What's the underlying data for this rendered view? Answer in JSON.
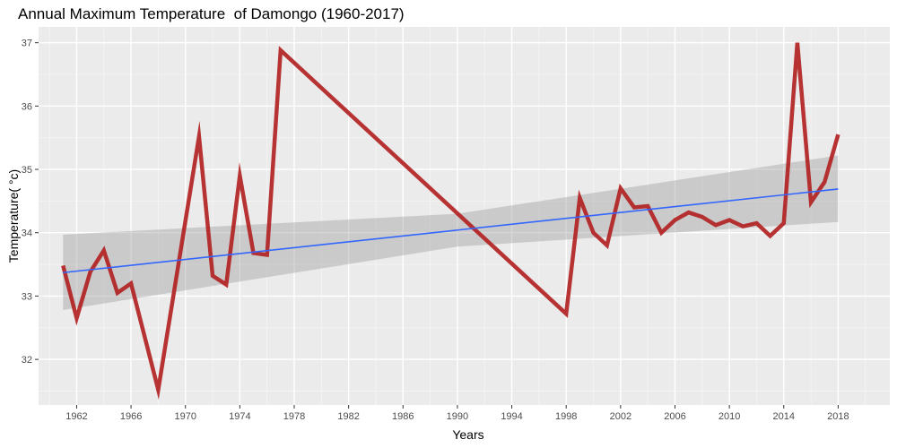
{
  "chart_data": {
    "type": "line",
    "title": "Annual Maximum Temperature  of Damongo (1960-2017)",
    "xlabel": "Years",
    "ylabel": "Temperature( °c)",
    "xlim": [
      1959.2,
      2021.8
    ],
    "ylim": [
      31.28,
      37.25
    ],
    "x_ticks": [
      1962,
      1966,
      1970,
      1974,
      1978,
      1982,
      1986,
      1990,
      1994,
      1998,
      2002,
      2006,
      2010,
      2014,
      2018
    ],
    "y_ticks": [
      32,
      33,
      34,
      35,
      36,
      37
    ],
    "grid": true,
    "series": [
      {
        "name": "Annual maximum temperature",
        "color": "#B22222",
        "x": [
          1961,
          1962,
          1963,
          1964,
          1965,
          1966,
          1968,
          1971,
          1972,
          1973,
          1974,
          1975,
          1976,
          1977,
          1998,
          1999,
          2000,
          2001,
          2002,
          2003,
          2004,
          2005,
          2006,
          2007,
          2008,
          2009,
          2010,
          2011,
          2012,
          2013,
          2014,
          2015,
          2016,
          2017,
          2018
        ],
        "y": [
          33.48,
          32.65,
          33.38,
          33.72,
          33.05,
          33.2,
          31.52,
          35.52,
          33.32,
          33.18,
          34.9,
          33.68,
          33.65,
          36.88,
          32.72,
          34.55,
          34.0,
          33.8,
          34.7,
          34.4,
          34.42,
          34.0,
          34.2,
          34.32,
          34.25,
          34.12,
          34.2,
          34.1,
          34.15,
          33.95,
          34.15,
          37.0,
          34.48,
          34.8,
          35.55
        ]
      },
      {
        "name": "Linear trend",
        "color": "#3366FF",
        "x": [
          1961,
          2018
        ],
        "y": [
          33.37,
          34.69
        ]
      }
    ],
    "confidence_band": {
      "color": "#999999",
      "x": [
        1961,
        1990,
        2018
      ],
      "lower": [
        32.78,
        33.78,
        34.17
      ],
      "upper": [
        33.97,
        34.3,
        35.22
      ]
    }
  }
}
